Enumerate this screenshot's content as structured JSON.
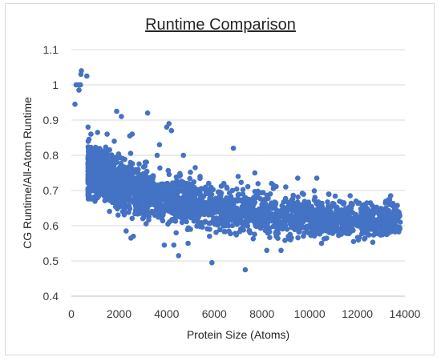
{
  "chart_data": {
    "type": "scatter",
    "title": "Runtime Comparison",
    "xlabel": "Protein Size (Atoms)",
    "ylabel": "CG Runtime/All-Atom Runtime",
    "xlim": [
      0,
      14000
    ],
    "ylim": [
      0.4,
      1.1
    ],
    "x_ticks": [
      "0",
      "2000",
      "4000",
      "6000",
      "8000",
      "10000",
      "12000",
      "14000"
    ],
    "y_ticks": [
      "0.4",
      "0.5",
      "0.6",
      "0.7",
      "0.8",
      "0.9",
      "1",
      "1.1"
    ],
    "grid": "horizontal",
    "legend": "none",
    "marker_color": "#4472c4",
    "series": [
      {
        "points": [
          [
            150,
            0.945
          ],
          [
            200,
            1.0
          ],
          [
            300,
            1.0
          ],
          [
            320,
            0.985
          ],
          [
            380,
            1.0
          ],
          [
            400,
            1.03
          ],
          [
            420,
            1.04
          ],
          [
            650,
            1.025
          ],
          [
            700,
            0.88
          ],
          [
            750,
            0.79
          ],
          [
            760,
            0.77
          ],
          [
            800,
            0.75
          ],
          [
            820,
            0.86
          ],
          [
            850,
            0.72
          ],
          [
            900,
            0.8
          ],
          [
            950,
            0.74
          ],
          [
            1000,
            0.7
          ],
          [
            1050,
            0.76
          ],
          [
            1100,
            0.865
          ],
          [
            1150,
            0.71
          ],
          [
            1200,
            0.78
          ],
          [
            1250,
            0.73
          ],
          [
            1300,
            0.69
          ],
          [
            1350,
            0.81
          ],
          [
            1400,
            0.75
          ],
          [
            1500,
            0.86
          ],
          [
            1600,
            0.72
          ],
          [
            1700,
            0.68
          ],
          [
            1800,
            0.84
          ],
          [
            1900,
            0.925
          ],
          [
            2000,
            0.7
          ],
          [
            2100,
            0.91
          ],
          [
            2150,
            0.66
          ],
          [
            2200,
            0.76
          ],
          [
            2300,
            0.585
          ],
          [
            2400,
            0.73
          ],
          [
            2450,
            0.855
          ],
          [
            2500,
            0.565
          ],
          [
            2550,
            0.86
          ],
          [
            2600,
            0.57
          ],
          [
            2700,
            0.71
          ],
          [
            2800,
            0.64
          ],
          [
            2900,
            0.69
          ],
          [
            3000,
            0.62
          ],
          [
            3100,
            0.78
          ],
          [
            3200,
            0.92
          ],
          [
            3300,
            0.66
          ],
          [
            3400,
            0.74
          ],
          [
            3500,
            0.63
          ],
          [
            3600,
            0.8
          ],
          [
            3700,
            0.83
          ],
          [
            3800,
            0.62
          ],
          [
            3900,
            0.545
          ],
          [
            4000,
            0.88
          ],
          [
            4100,
            0.89
          ],
          [
            4200,
            0.87
          ],
          [
            4300,
            0.545
          ],
          [
            4400,
            0.58
          ],
          [
            4500,
            0.515
          ],
          [
            4600,
            0.7
          ],
          [
            4700,
            0.8
          ],
          [
            4800,
            0.62
          ],
          [
            4900,
            0.55
          ],
          [
            5000,
            0.59
          ],
          [
            5200,
            0.765
          ],
          [
            5400,
            0.74
          ],
          [
            5600,
            0.61
          ],
          [
            5800,
            0.57
          ],
          [
            5900,
            0.495
          ],
          [
            6000,
            0.65
          ],
          [
            6200,
            0.61
          ],
          [
            6400,
            0.72
          ],
          [
            6600,
            0.6
          ],
          [
            6800,
            0.82
          ],
          [
            7000,
            0.74
          ],
          [
            7200,
            0.69
          ],
          [
            7300,
            0.475
          ],
          [
            7500,
            0.58
          ],
          [
            7700,
            0.75
          ],
          [
            8000,
            0.66
          ],
          [
            8200,
            0.53
          ],
          [
            8400,
            0.72
          ],
          [
            8600,
            0.57
          ],
          [
            8800,
            0.53
          ],
          [
            9000,
            0.71
          ],
          [
            9200,
            0.56
          ],
          [
            9500,
            0.735
          ],
          [
            9800,
            0.58
          ],
          [
            10000,
            0.58
          ],
          [
            10300,
            0.735
          ],
          [
            10500,
            0.55
          ],
          [
            10800,
            0.69
          ],
          [
            11000,
            0.6
          ],
          [
            11500,
            0.63
          ],
          [
            11700,
            0.685
          ],
          [
            12000,
            0.6
          ],
          [
            12300,
            0.66
          ],
          [
            12600,
            0.59
          ],
          [
            12900,
            0.62
          ],
          [
            13200,
            0.65
          ],
          [
            13400,
            0.685
          ],
          [
            13600,
            0.63
          ],
          [
            13800,
            0.61
          ]
        ],
        "dense_band": {
          "x_range": [
            700,
            13800
          ],
          "y_center_start": 0.76,
          "y_center_end": 0.61,
          "spread": 0.035,
          "count": 2600
        }
      }
    ]
  }
}
